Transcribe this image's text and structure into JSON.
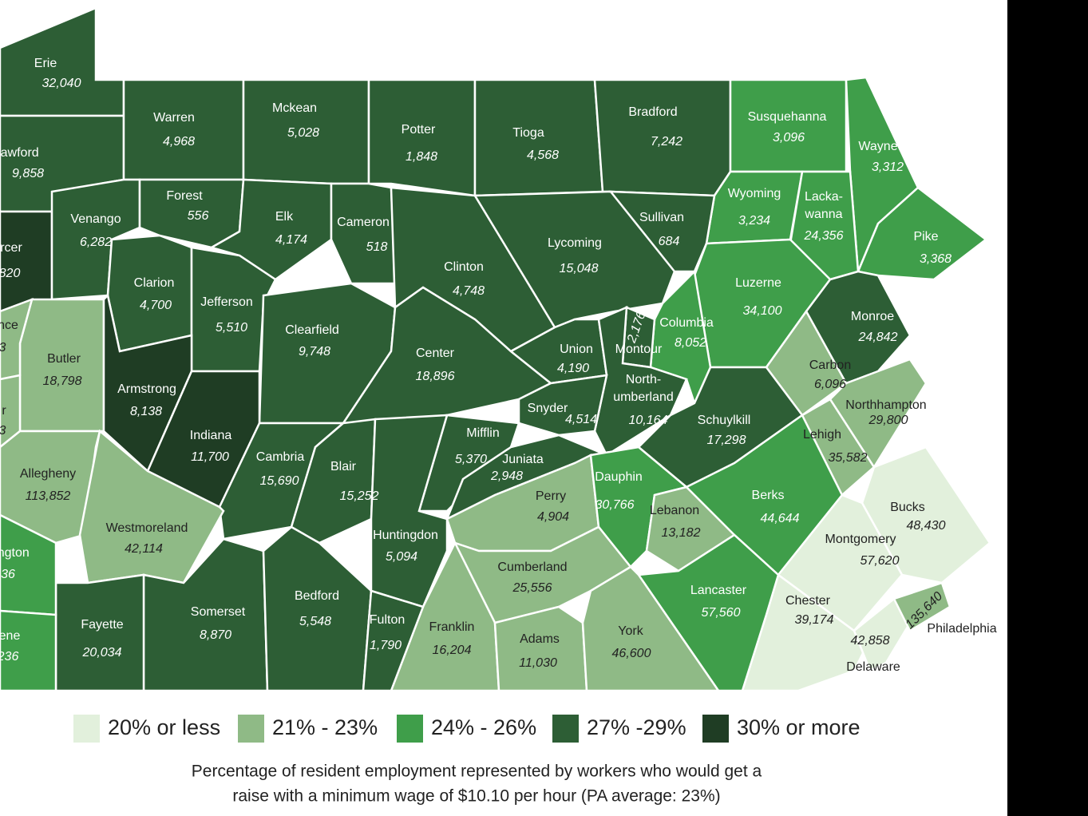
{
  "counties": [
    {
      "name": "Erie",
      "value": "32,040",
      "color": "#2d5e35"
    },
    {
      "name": "rawford",
      "value": "9,858",
      "color": "#2d5e35"
    },
    {
      "name": "Warren",
      "value": "4,968",
      "color": "#2d5e35"
    },
    {
      "name": "Mckean",
      "value": "5,028",
      "color": "#2d5e35"
    },
    {
      "name": "Potter",
      "value": "1,848",
      "color": "#2d5e35"
    },
    {
      "name": "Tioga",
      "value": "4,568",
      "color": "#2d5e35"
    },
    {
      "name": "Bradford",
      "value": "7,242",
      "color": "#2d5e35"
    },
    {
      "name": "Susquehanna",
      "value": "3,096",
      "color": "#3f9e4a"
    },
    {
      "name": "Wayne",
      "value": "3,312",
      "color": "#3f9e4a"
    },
    {
      "name": "Pike",
      "value": "3,368",
      "color": "#3f9e4a"
    },
    {
      "name": "Wyoming",
      "value": "3,234",
      "color": "#3f9e4a"
    },
    {
      "name": [
        "Lacka-",
        "wanna"
      ],
      "value": "24,356",
      "color": "#3f9e4a"
    },
    {
      "name": "rcer",
      "value": "820",
      "color": "#1f3d24"
    },
    {
      "name": "Venango",
      "value": "6,282",
      "color": "#2d5e35"
    },
    {
      "name": "Forest",
      "value": "556",
      "color": "#2d5e35"
    },
    {
      "name": "Elk",
      "value": "4,174",
      "color": "#2d5e35"
    },
    {
      "name": "Cameron",
      "value": "518",
      "color": "#2d5e35"
    },
    {
      "name": "Clarion",
      "value": "4,700",
      "color": "#2d5e35"
    },
    {
      "name": "Jefferson",
      "value": "5,510",
      "color": "#2d5e35"
    },
    {
      "name": "Clearfield",
      "value": "9,748",
      "color": "#2d5e35"
    },
    {
      "name": "Clinton",
      "value": "4,748",
      "color": "#2d5e35"
    },
    {
      "name": "Lycoming",
      "value": "15,048",
      "color": "#2d5e35"
    },
    {
      "name": "Sullivan",
      "value": "684",
      "color": "#2d5e35"
    },
    {
      "name": "Luzerne",
      "value": "34,100",
      "color": "#3f9e4a"
    },
    {
      "name": "Columbia",
      "value": "8,052",
      "color": "#3f9e4a"
    },
    {
      "name": "Montour",
      "value": "2,176",
      "color": "#2d5e35"
    },
    {
      "name": "Monroe",
      "value": "24,842",
      "color": "#2d5e35"
    },
    {
      "name": "Carbon",
      "value": "6,096",
      "color": "#8fba86"
    },
    {
      "name": "Center",
      "value": "18,896",
      "color": "#2d5e35"
    },
    {
      "name": "Union",
      "value": "4,190",
      "color": "#2d5e35"
    },
    {
      "name": [
        "North-",
        "umberland"
      ],
      "value": "10,164",
      "color": "#2d5e35"
    },
    {
      "name": "Snyder",
      "value": "4,514",
      "color": "#2d5e35"
    },
    {
      "name": "Schuylkill",
      "value": "17,298",
      "color": "#2d5e35"
    },
    {
      "name": "Butler",
      "value": "18,798",
      "color": "#8fba86"
    },
    {
      "name": "nce",
      "value": "3",
      "color": "#8fba86"
    },
    {
      "name": "r",
      "value": "3",
      "color": "#8fba86"
    },
    {
      "name": "Armstrong",
      "value": "8,138",
      "color": "#1f3d24"
    },
    {
      "name": "Indiana",
      "value": "11,700",
      "color": "#1f3d24"
    },
    {
      "name": "Cambria",
      "value": "15,690",
      "color": "#2d5e35"
    },
    {
      "name": "Blair",
      "value": "15,252",
      "color": "#2d5e35"
    },
    {
      "name": "Mifflin",
      "value": "5,370",
      "color": "#2d5e35"
    },
    {
      "name": "Juniata",
      "value": "2,948",
      "color": "#2d5e35"
    },
    {
      "name": "Allegheny",
      "value": "113,852",
      "color": "#8fba86"
    },
    {
      "name": "Westmoreland",
      "value": "42,114",
      "color": "#8fba86"
    },
    {
      "name": "Huntingdon",
      "value": "5,094",
      "color": "#2d5e35"
    },
    {
      "name": "Perry",
      "value": "4,904",
      "color": "#8fba86"
    },
    {
      "name": "Dauphin",
      "value": "30,766",
      "color": "#3f9e4a"
    },
    {
      "name": "Lebanon",
      "value": "13,182",
      "color": "#8fba86"
    },
    {
      "name": "Berks",
      "value": "44,644",
      "color": "#3f9e4a"
    },
    {
      "name": "Lehigh",
      "value": "35,582",
      "color": "#8fba86"
    },
    {
      "name": "Northhampton",
      "value": "29,800",
      "color": "#8fba86"
    },
    {
      "name": "Bucks",
      "value": "48,430",
      "color": "#e2f0dc"
    },
    {
      "name": "Montgomery",
      "value": "57,620",
      "color": "#e2f0dc"
    },
    {
      "name": "Chester",
      "value": "39,174",
      "color": "#e2f0dc"
    },
    {
      "name": "Delaware",
      "value": "42,858",
      "color": "#e2f0dc"
    },
    {
      "name": "Philadelphia",
      "value": "135,640",
      "color": "#8fba86"
    },
    {
      "name": "Lancaster",
      "value": "57,560",
      "color": "#3f9e4a"
    },
    {
      "name": "Cumberland",
      "value": "25,556",
      "color": "#8fba86"
    },
    {
      "name": "Franklin",
      "value": "16,204",
      "color": "#8fba86"
    },
    {
      "name": "Adams",
      "value": "11,030",
      "color": "#8fba86"
    },
    {
      "name": "York",
      "value": "46,600",
      "color": "#8fba86"
    },
    {
      "name": "Somerset",
      "value": "8,870",
      "color": "#2d5e35"
    },
    {
      "name": "Bedford",
      "value": "5,548",
      "color": "#2d5e35"
    },
    {
      "name": "Fulton",
      "value": "1,790",
      "color": "#2d5e35"
    },
    {
      "name": "Fayette",
      "value": "20,034",
      "color": "#2d5e35"
    },
    {
      "name": "ington",
      "value": "36",
      "color": "#3f9e4a"
    },
    {
      "name": "ene",
      "value": "236",
      "color": "#3f9e4a"
    }
  ],
  "legend": [
    {
      "label": "20% or less",
      "color": "#e2f0dc"
    },
    {
      "label": "21% - 23%",
      "color": "#8fba86"
    },
    {
      "label": "24% - 26%",
      "color": "#3f9e4a"
    },
    {
      "label": "27% -29%",
      "color": "#2d5e35"
    },
    {
      "label": "30% or more",
      "color": "#1f3d24"
    }
  ],
  "caption": [
    "Percentage of resident employment represented by workers who would get a",
    "raise with a minimum wage of $10.10 per hour (PA average: 23%)"
  ]
}
